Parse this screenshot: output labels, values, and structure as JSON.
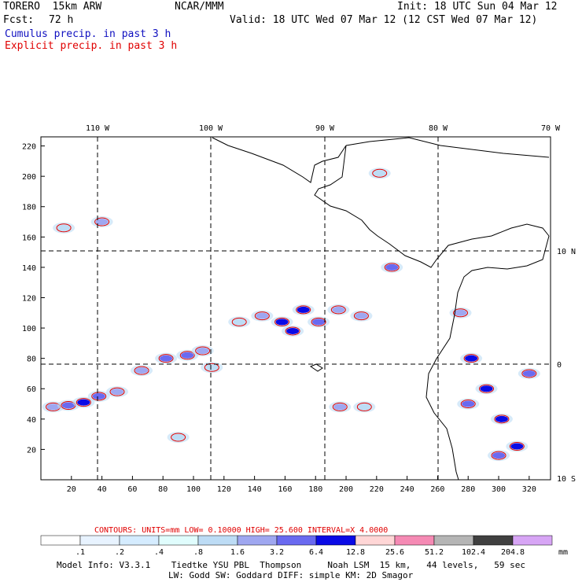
{
  "header": {
    "model": "TORERO  15km ARW",
    "org": "NCAR/MMM",
    "init": "Init: 18 UTC Sun 04 Mar 12",
    "fcst_label": "Fcst:",
    "fcst_value": "72 h",
    "valid": "Valid: 18 UTC Wed 07 Mar 12 (12 CST Wed 07 Mar 12)",
    "legend_cumulus": "Cumulus precip. in past 3 h",
    "legend_explicit": "Explicit precip. in past 3 h"
  },
  "colors": {
    "cumulus": "#1010c0",
    "explicit": "#e00000",
    "coast": "#000000"
  },
  "chart_data": {
    "type": "heatmap",
    "title": "",
    "x_ticks": [
      20,
      40,
      60,
      80,
      100,
      120,
      140,
      160,
      180,
      200,
      220,
      240,
      260,
      280,
      300,
      320
    ],
    "y_ticks": [
      20,
      40,
      60,
      80,
      100,
      120,
      140,
      160,
      180,
      200,
      220
    ],
    "top_lon_labels": [
      "110 W",
      "100 W",
      "90 W",
      "80 W",
      "70 W"
    ],
    "right_lat_labels": [
      "10 N",
      "0",
      "10 S"
    ],
    "xlim": [
      0,
      334
    ],
    "ylim": [
      0,
      226
    ],
    "grid": "dashed",
    "contours_label": "CONTOURS:  UNITS=mm  LOW= 0.10000      HIGH=  25.600      INTERVAL=X  4.0000",
    "colorbar": {
      "levels": [
        ".1",
        ".2",
        ".4",
        ".8",
        "1.6",
        "3.2",
        "6.4",
        "12.8",
        "25.6",
        "51.2",
        "102.4",
        "204.8"
      ],
      "colors": [
        "#ffffff",
        "#e8f3ff",
        "#d5ecff",
        "#e0fdfd",
        "#bddcf5",
        "#9fa7f0",
        "#6a6af0",
        "#0a0ae6",
        "#ffd6d6",
        "#f58ab4",
        "#b5b5b5",
        "#404040",
        "#d7a5f5"
      ],
      "unit": "mm"
    },
    "precip_cells": [
      {
        "x": 8,
        "y": 48,
        "v": 5
      },
      {
        "x": 18,
        "y": 49,
        "v": 6
      },
      {
        "x": 28,
        "y": 51,
        "v": 7
      },
      {
        "x": 38,
        "y": 55,
        "v": 6
      },
      {
        "x": 50,
        "y": 58,
        "v": 5
      },
      {
        "x": 66,
        "y": 72,
        "v": 5
      },
      {
        "x": 82,
        "y": 80,
        "v": 6
      },
      {
        "x": 96,
        "y": 82,
        "v": 6
      },
      {
        "x": 106,
        "y": 85,
        "v": 5
      },
      {
        "x": 112,
        "y": 74,
        "v": 4
      },
      {
        "x": 130,
        "y": 104,
        "v": 4
      },
      {
        "x": 145,
        "y": 108,
        "v": 5
      },
      {
        "x": 158,
        "y": 104,
        "v": 7
      },
      {
        "x": 165,
        "y": 98,
        "v": 7
      },
      {
        "x": 172,
        "y": 112,
        "v": 7
      },
      {
        "x": 182,
        "y": 104,
        "v": 6
      },
      {
        "x": 195,
        "y": 112,
        "v": 5
      },
      {
        "x": 210,
        "y": 108,
        "v": 5
      },
      {
        "x": 15,
        "y": 166,
        "v": 4
      },
      {
        "x": 40,
        "y": 170,
        "v": 5
      },
      {
        "x": 90,
        "y": 28,
        "v": 4
      },
      {
        "x": 196,
        "y": 48,
        "v": 5
      },
      {
        "x": 212,
        "y": 48,
        "v": 4
      },
      {
        "x": 282,
        "y": 80,
        "v": 7
      },
      {
        "x": 292,
        "y": 60,
        "v": 7
      },
      {
        "x": 302,
        "y": 40,
        "v": 7
      },
      {
        "x": 312,
        "y": 22,
        "v": 7
      },
      {
        "x": 300,
        "y": 16,
        "v": 6
      },
      {
        "x": 280,
        "y": 50,
        "v": 6
      },
      {
        "x": 320,
        "y": 70,
        "v": 6
      },
      {
        "x": 275,
        "y": 110,
        "v": 5
      },
      {
        "x": 230,
        "y": 140,
        "v": 6
      },
      {
        "x": 222,
        "y": 202,
        "v": 4
      }
    ]
  },
  "footer": {
    "model_info": "Model Info: V3.3.1    Tiedtke YSU PBL  Thompson     Noah LSM  15 km,   44 levels,   59 sec",
    "model_info2": "LW: Godd SW: Goddard DIFF: simple KM: 2D Smagor"
  }
}
